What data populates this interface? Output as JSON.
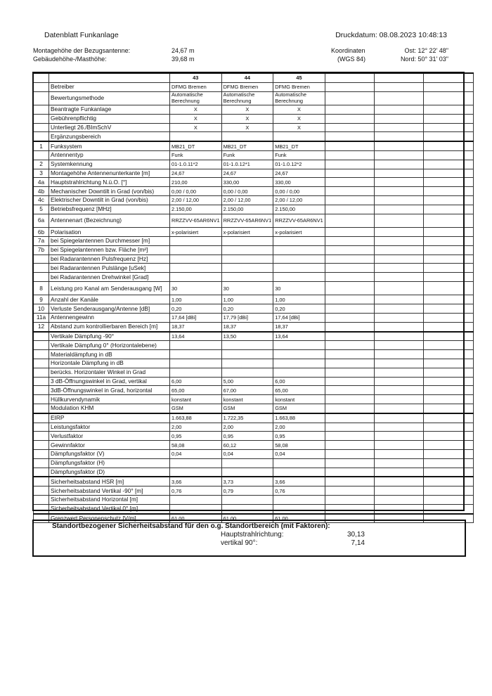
{
  "header": {
    "title": "Datenblatt Funkanlage",
    "print_date": "Druckdatum: 08.08.2023 10:48:13"
  },
  "info": {
    "mount_label": "Montagehöhe der Bezugsantenne:",
    "mount_value": "24,67 m",
    "building_label": "Gebäudehöhe-/Masthöhe:",
    "building_value": "39,68 m",
    "coord_label": "Koordinaten",
    "coord_system": "(WGS 84)",
    "east": "Ost: 12° 22' 48\"",
    "north": "Nord: 50° 31' 03\""
  },
  "table": {
    "columns": [
      "43",
      "44",
      "45",
      "",
      "",
      ""
    ],
    "rows": [
      {
        "n": "",
        "label": "Betreiber",
        "v": [
          "DFMG Bremen",
          "DFMG Bremen",
          "DFMG Bremen"
        ]
      },
      {
        "n": "",
        "label": "Bewertungsmethode",
        "v": [
          "Automatische Berechnung",
          "Automatische Berechnung",
          "Automatische Berechnung"
        ],
        "tall": true
      },
      {
        "n": "",
        "label": "Beantragte Funkanlage",
        "v": [
          "X",
          "X",
          "X"
        ],
        "center": true
      },
      {
        "n": "",
        "label": "Gebührenpflichtig",
        "v": [
          "X",
          "X",
          "X"
        ],
        "center": true
      },
      {
        "n": "",
        "label": "Unterliegt 26./BImSchV",
        "v": [
          "X",
          "X",
          "X"
        ],
        "center": true
      },
      {
        "n": "",
        "label": "Ergänzungsbereich",
        "v": [
          "",
          "",
          ""
        ]
      },
      {
        "n": "1",
        "label": "Funksystem",
        "v": [
          "MB21_DT",
          "MB21_DT",
          "MB21_DT"
        ],
        "thick": true
      },
      {
        "n": "",
        "label": "Antennentyp",
        "v": [
          "Funk",
          "Funk",
          "Funk"
        ]
      },
      {
        "n": "2",
        "label": "Systemkennung",
        "v": [
          "01-1.0.11*2",
          "01-1.0.12*1",
          "01-1.0.12*2"
        ]
      },
      {
        "n": "3",
        "label": "Montagehöhe Antennenunterkante [m]",
        "v": [
          "24,67",
          "24,67",
          "24,67"
        ]
      },
      {
        "n": "4a",
        "label": "Hauptstrahlrichtung N.ü.O. [°]",
        "v": [
          "210,00",
          "330,00",
          "330,00"
        ]
      },
      {
        "n": "4b",
        "label": "Mechanischer Downtilt in Grad (von/bis)",
        "v": [
          "0,00 / 0,00",
          "0,00 / 0,00",
          "0,00 / 0,00"
        ]
      },
      {
        "n": "4c",
        "label": "Elektrischer Downtilt in Grad (von/bis)",
        "v": [
          "2,00 / 12,00",
          "2,00 / 12,00",
          "2,00 / 12,00"
        ]
      },
      {
        "n": "5",
        "label": "Betriebsfrequenz [MHz]",
        "v": [
          "2.150,00",
          "2.150,00",
          "2.150,00"
        ]
      },
      {
        "n": "6a",
        "label": "Antennenart (Bezeichnung)",
        "v": [
          "RRZZVV-65AR6NV1",
          "RRZZVV-65AR6NV1",
          "RRZZVV-65AR6NV1"
        ],
        "tall": true
      },
      {
        "n": "6b",
        "label": "Polarisation",
        "v": [
          "x-polarisiert",
          "x-polarisiert",
          "x-polarisiert"
        ]
      },
      {
        "n": "7a",
        "label": "bei Spiegelantennen Durchmesser [m]",
        "v": [
          "",
          "",
          ""
        ]
      },
      {
        "n": "7b",
        "label": "bei Spiegelantennen bzw. Fläche [m²]",
        "v": [
          "",
          "",
          ""
        ]
      },
      {
        "n": "",
        "label": "bei Radarantennen Pulsfrequenz [Hz]",
        "v": [
          "",
          "",
          ""
        ]
      },
      {
        "n": "",
        "label": "bei Radarantennen Pulslänge [uSek]",
        "v": [
          "",
          "",
          ""
        ]
      },
      {
        "n": "",
        "label": "bei Radarantennen Drehwinkel [Grad]",
        "v": [
          "",
          "",
          ""
        ]
      },
      {
        "n": "8",
        "label": "Leistung pro Kanal am Senderausgang  [W]",
        "v": [
          "30",
          "30",
          "30"
        ],
        "tall": true
      },
      {
        "n": "9",
        "label": "Anzahl der Kanäle",
        "v": [
          "1,00",
          "1,00",
          "1,00"
        ]
      },
      {
        "n": "10",
        "label": "Verluste Senderausgang/Antenne [dB]",
        "v": [
          "0,20",
          "0,20",
          "0,20"
        ]
      },
      {
        "n": "11a",
        "label": "Antennengewinn",
        "v": [
          "17,64 [dBi]",
          "17,79 [dBi]",
          "17,64 [dBi]"
        ]
      },
      {
        "n": "12",
        "label": "Abstand zum kontrollierbaren Bereich [m]",
        "v": [
          "18,37",
          "18,37",
          "18,37"
        ]
      },
      {
        "n": "",
        "label": "Vertikale Dämpfung -90°",
        "v": [
          "13,64",
          "13,50",
          "13,64"
        ],
        "thick": true
      },
      {
        "n": "",
        "label": "Vertikale Dämpfung 0° (Horizontalebene)",
        "v": [
          "",
          "",
          ""
        ]
      },
      {
        "n": "",
        "label": "Materialdämpfung in dB",
        "v": [
          "",
          "",
          ""
        ]
      },
      {
        "n": "",
        "label": "Horizontale Dämpfung in dB",
        "v": [
          "",
          "",
          ""
        ]
      },
      {
        "n": "",
        "label": "berücks. Horizontaler Winkel in Grad",
        "v": [
          "",
          "",
          ""
        ]
      },
      {
        "n": "",
        "label": "3 dB-Öffnungswinkel in Grad, vertikal",
        "v": [
          "6,00",
          "5,00",
          "6,00"
        ]
      },
      {
        "n": "",
        "label": "3dB-Öffnungswinkel in Grad, horizontal",
        "v": [
          "65,00",
          "67,00",
          "65,00"
        ]
      },
      {
        "n": "",
        "label": "Hüllkurvendynamik",
        "v": [
          "konstant",
          "konstant",
          "konstant"
        ]
      },
      {
        "n": "",
        "label": "Modulation KHM",
        "v": [
          "GSM",
          "GSM",
          "GSM"
        ]
      },
      {
        "n": "",
        "label": "EIRP",
        "v": [
          "1.663,88",
          "1.722,35",
          "1.663,88"
        ],
        "thick": true
      },
      {
        "n": "",
        "label": "Leistungsfaktor",
        "v": [
          "2,00",
          "2,00",
          "2,00"
        ]
      },
      {
        "n": "",
        "label": "Verlustfaktor",
        "v": [
          "0,95",
          "0,95",
          "0,95"
        ]
      },
      {
        "n": "",
        "label": "Gewinnfaktor",
        "v": [
          "58,08",
          "60,12",
          "58,08"
        ]
      },
      {
        "n": "",
        "label": "Dämpfungsfaktor (V)",
        "v": [
          "0,04",
          "0,04",
          "0,04"
        ]
      },
      {
        "n": "",
        "label": "Dämpfungsfaktor (H)",
        "v": [
          "",
          "",
          ""
        ]
      },
      {
        "n": "",
        "label": "Dämpfungsfaktor (D)",
        "v": [
          "",
          "",
          ""
        ]
      },
      {
        "n": "",
        "label": "Sicherheitsabstand HSR [m]",
        "v": [
          "3,66",
          "3,73",
          "3,66"
        ],
        "thick": true
      },
      {
        "n": "",
        "label": "Sicherheitsabstand Vertikal -90° [m]",
        "v": [
          "0,76",
          "0,79",
          "0,76"
        ]
      },
      {
        "n": "",
        "label": "Sicherheitsabstand Horizontal [m]",
        "v": [
          "",
          "",
          ""
        ]
      },
      {
        "n": "",
        "label": "Sicherheitsabstand Vertikal 0° [m]",
        "v": [
          "",
          "",
          ""
        ]
      },
      {
        "n": "",
        "label": "Grenzwert Personenschutz [V/m]",
        "v": [
          "61,00",
          "61,00",
          "61,00"
        ],
        "thick": true
      }
    ]
  },
  "summary": {
    "title": "Standortbezogener Sicherheitsabstand für den o.g. Standortbereich (mit Faktoren):",
    "main_label": "Hauptstrahlrichtung:",
    "main_value": "30,13",
    "vert_label": "vertikal 90°:",
    "vert_value": "7,14"
  }
}
